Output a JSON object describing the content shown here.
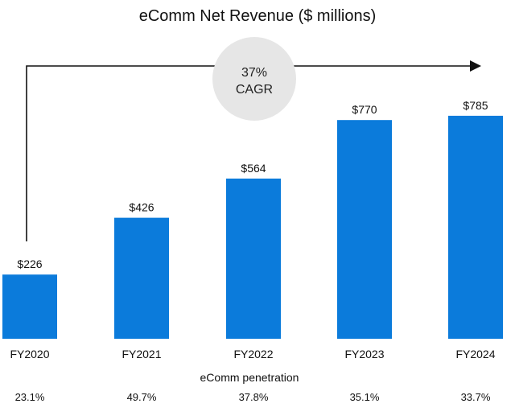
{
  "chart_data": {
    "type": "bar",
    "title": "eComm Net Revenue ($ millions)",
    "categories": [
      "FY2020",
      "FY2021",
      "FY2022",
      "FY2023",
      "FY2024"
    ],
    "values": [
      226,
      426,
      564,
      770,
      785
    ],
    "value_labels": [
      "$226",
      "$426",
      "$564",
      "$770",
      "$785"
    ],
    "ylim": [
      0,
      1000
    ],
    "grid": false,
    "bar_color": "#0B7BDB",
    "annotation": {
      "line1": "37%",
      "line2": "CAGR",
      "circle_color": "#E6E6E6"
    },
    "penetration": {
      "label": "eComm penetration",
      "values": [
        "23.1%",
        "49.7%",
        "37.8%",
        "35.1%",
        "33.7%"
      ]
    }
  }
}
